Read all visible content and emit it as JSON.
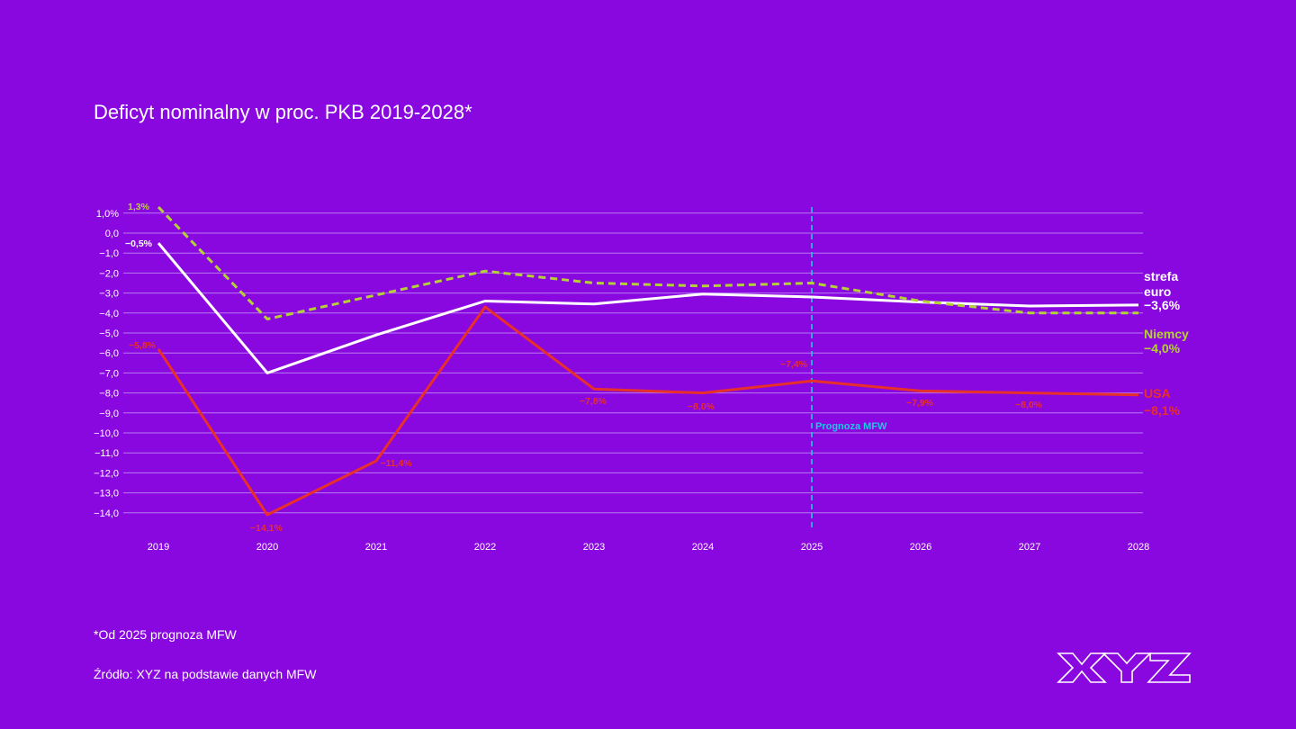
{
  "colors": {
    "background": "#8a08e0",
    "grid": "#b777ef",
    "strefa_euro": "#ffffff",
    "niemcy": "#b4d236",
    "usa": "#e8302a",
    "forecast_line": "#1ec8e6"
  },
  "footnote": "*Od 2025 prognoza MFW",
  "source": "Źródło: XYZ na podstawie danych MFW",
  "logo_text": "XYZ",
  "chart_data": {
    "type": "line",
    "title": "Deficyt nominalny w proc. PKB 2019-2028*",
    "xlabel": "",
    "ylabel": "",
    "ylim": [
      -14.5,
      1.5
    ],
    "grid": true,
    "categories": [
      "2019",
      "2020",
      "2021",
      "2022",
      "2023",
      "2024",
      "2025",
      "2026",
      "2027",
      "2028"
    ],
    "y_ticks": [
      {
        "value": 1,
        "label": "1,0%"
      },
      {
        "value": 0,
        "label": "0,0"
      },
      {
        "value": -1,
        "label": "−1,0"
      },
      {
        "value": -2,
        "label": "−2,0"
      },
      {
        "value": -3,
        "label": "−3,0"
      },
      {
        "value": -4,
        "label": "−4,0"
      },
      {
        "value": -5,
        "label": "−5,0"
      },
      {
        "value": -6,
        "label": "−6,0"
      },
      {
        "value": -7,
        "label": "−7,0"
      },
      {
        "value": -8,
        "label": "−8,0"
      },
      {
        "value": -9,
        "label": "−9,0"
      },
      {
        "value": -10,
        "label": "−10,0"
      },
      {
        "value": -11,
        "label": "−11,0"
      },
      {
        "value": -12,
        "label": "−12,0"
      },
      {
        "value": -13,
        "label": "−13,0"
      },
      {
        "value": -14,
        "label": "−14,0"
      }
    ],
    "series": [
      {
        "key": "strefa_euro",
        "values": [
          -0.5,
          -7.0,
          -5.1,
          -3.4,
          -3.55,
          -3.05,
          -3.2,
          -3.45,
          -3.65,
          -3.6
        ],
        "style": "solid",
        "end_label_name": [
          "strefa",
          "euro"
        ],
        "end_label_value": "−3,6%",
        "point_labels": [
          {
            "index": 0,
            "text": "−0,5%"
          }
        ]
      },
      {
        "key": "niemcy",
        "values": [
          1.3,
          -4.3,
          -3.1,
          -1.9,
          -2.5,
          -2.65,
          -2.5,
          -3.4,
          -4.0,
          -4.0
        ],
        "style": "dashed",
        "end_label_name": [
          "Niemcy"
        ],
        "end_label_value": "−4,0%",
        "point_labels": [
          {
            "index": 0,
            "text": "1,3%"
          }
        ]
      },
      {
        "key": "usa",
        "values": [
          -5.8,
          -14.1,
          -11.4,
          -3.7,
          -7.8,
          -8.0,
          -7.4,
          -7.9,
          -8.0,
          -8.1
        ],
        "style": "solid",
        "end_label_name": [
          "USA"
        ],
        "end_label_value": "−8,1%",
        "point_labels": [
          {
            "index": 0,
            "text": "−5,8%"
          },
          {
            "index": 1,
            "text": "−14,1%"
          },
          {
            "index": 2,
            "text": "−11,4%"
          },
          {
            "index": 4,
            "text": "−7,8%"
          },
          {
            "index": 5,
            "text": "−8,0%"
          },
          {
            "index": 6,
            "text": "−7,4%"
          },
          {
            "index": 7,
            "text": "−7,9%"
          },
          {
            "index": 8,
            "text": "−8,0%"
          }
        ]
      }
    ],
    "annotations": [
      {
        "type": "vertical-dashed-line",
        "x": "2025",
        "label": "Prognoza MFW"
      }
    ]
  }
}
